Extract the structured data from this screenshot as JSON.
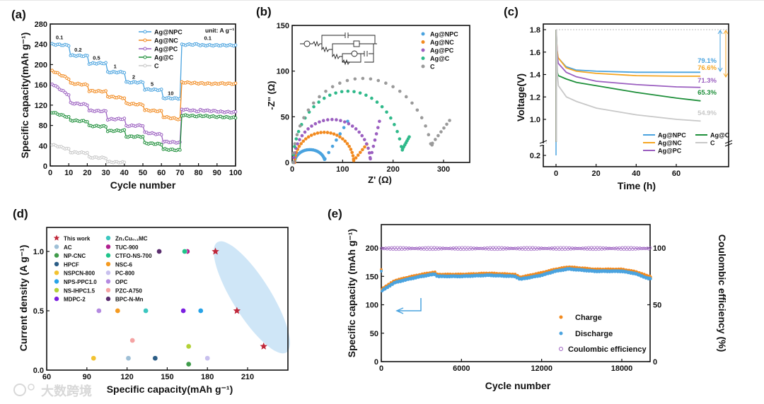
{
  "watermark": "大数跨境",
  "chart_data": [
    {
      "panel": "(a)",
      "type": "line",
      "xlabel": "Cycle number",
      "ylabel": "Specific capacity(mAh g⁻¹)",
      "xlim": [
        0,
        100
      ],
      "ylim": [
        0,
        280
      ],
      "xticks": [
        0,
        10,
        20,
        30,
        40,
        50,
        60,
        70,
        80,
        90,
        100
      ],
      "yticks": [
        0,
        40,
        80,
        120,
        160,
        200,
        240,
        280
      ],
      "unit_label": "unit: A g⁻¹",
      "rate_labels": [
        {
          "text": "0.1",
          "cycle": 5,
          "cap": 250
        },
        {
          "text": "0.2",
          "cycle": 15,
          "cap": 226
        },
        {
          "text": "0.5",
          "cycle": 25,
          "cap": 210
        },
        {
          "text": "1",
          "cycle": 35,
          "cap": 193
        },
        {
          "text": "2",
          "cycle": 45,
          "cap": 172
        },
        {
          "text": "5",
          "cycle": 55,
          "cap": 158
        },
        {
          "text": "10",
          "cycle": 65,
          "cap": 140
        },
        {
          "text": "0.1",
          "cycle": 85,
          "cap": 249
        }
      ],
      "series_note": "each segment = [start, end] capacity over 10 cycles",
      "series": [
        {
          "name": "Ag@NPC",
          "color": "#4aa3df",
          "segments": [
            [
              240,
              238
            ],
            [
              218,
              217
            ],
            [
              202,
              203
            ],
            [
              185,
              185
            ],
            [
              165,
              165
            ],
            [
              151,
              150
            ],
            [
              134,
              133
            ],
            [
              239,
              240
            ],
            [
              238,
              238
            ],
            [
              238,
              238
            ]
          ]
        },
        {
          "name": "Ag@NC",
          "color": "#f28a1f",
          "segments": [
            [
              188,
              172
            ],
            [
              163,
              160
            ],
            [
              148,
              147
            ],
            [
              137,
              134
            ],
            [
              123,
              121
            ],
            [
              110,
              108
            ],
            [
              97,
              92
            ],
            [
              165,
              163
            ],
            [
              163,
              162
            ],
            [
              163,
              162
            ]
          ]
        },
        {
          "name": "Ag@PC",
          "color": "#9b5fc0",
          "segments": [
            [
              162,
              140
            ],
            [
              124,
              121
            ],
            [
              109,
              108
            ],
            [
              92,
              93
            ],
            [
              79,
              80
            ],
            [
              66,
              62
            ],
            [
              48,
              46
            ],
            [
              112,
              108
            ],
            [
              110,
              108
            ],
            [
              107,
              106
            ]
          ]
        },
        {
          "name": "Ag@C",
          "color": "#1e8f3a",
          "segments": [
            [
              106,
              96
            ],
            [
              90,
              88
            ],
            [
              79,
              78
            ],
            [
              69,
              70
            ],
            [
              58,
              58
            ],
            [
              45,
              43
            ],
            [
              33,
              31
            ],
            [
              100,
              98
            ],
            [
              99,
              97
            ],
            [
              97,
              95
            ]
          ]
        },
        {
          "name": "C",
          "color": "#c8c8c8",
          "segments": [
            [
              42,
              33
            ],
            [
              27,
              26
            ],
            [
              17,
              16
            ],
            [
              8,
              7
            ]
          ]
        }
      ]
    },
    {
      "panel": "(b)",
      "type": "scatter",
      "xlabel": "Z' (Ω)",
      "ylabel": "-Z'' (Ω)",
      "xlim": [
        0,
        350
      ],
      "ylim": [
        0,
        150
      ],
      "xticks": [
        0,
        100,
        200,
        300
      ],
      "yticks": [
        0,
        50,
        100,
        150
      ],
      "series_note": "Nyquist arcs: start, arc end (min), arc peak height, min height, tail end point",
      "series": [
        {
          "name": "Ag@NPC",
          "color": "#4aa3df",
          "start": 5,
          "end": 65,
          "peak": 14,
          "min": 4,
          "tail": [
            110,
            45
          ]
        },
        {
          "name": "Ag@NC",
          "color": "#f28a1f",
          "start": 5,
          "end": 122,
          "peak": 33,
          "min": 2,
          "tail": [
            148,
            20
          ]
        },
        {
          "name": "Ag@PC",
          "color": "#9b5fc0",
          "start": 3,
          "end": 155,
          "peak": 47,
          "min": 4,
          "tail": [
            173,
            45
          ]
        },
        {
          "name": "Ag@C",
          "color": "#2fb98a",
          "start": 2,
          "end": 219,
          "peak": 78,
          "min": 15,
          "tail": [
            232,
            28
          ]
        },
        {
          "name": "C",
          "color": "#9a9a9a",
          "start": 2,
          "end": 278,
          "peak": 92,
          "min": 21,
          "tail": [
            312,
            46
          ]
        }
      ]
    },
    {
      "panel": "(c)",
      "type": "line",
      "xlabel": "Time (h)",
      "ylabel": "Voltage(V)",
      "xlim": [
        -5,
        72
      ],
      "ylim": [
        0.1,
        1.85
      ],
      "xticks": [
        0,
        20,
        40,
        60
      ],
      "yticks": [
        0.2,
        1.0,
        1.2,
        1.4,
        1.6,
        1.8
      ],
      "t": [
        0,
        0.5,
        1,
        5,
        10,
        20,
        40,
        60,
        72
      ],
      "series": [
        {
          "name": "Ag@NPC",
          "color": "#4aa3df",
          "v": [
            1.8,
            1.62,
            1.55,
            1.47,
            1.44,
            1.43,
            1.42,
            1.42,
            1.42
          ],
          "retention": "79.1%"
        },
        {
          "name": "Ag@NC",
          "color": "#f5a623",
          "v": [
            1.8,
            1.62,
            1.55,
            1.46,
            1.43,
            1.41,
            1.39,
            1.385,
            1.385
          ],
          "retention": "76.6%"
        },
        {
          "name": "Ag@PC",
          "color": "#9b5fc0",
          "v": [
            1.8,
            1.58,
            1.5,
            1.42,
            1.38,
            1.34,
            1.31,
            1.29,
            1.285
          ],
          "retention": "71.3%"
        },
        {
          "name": "Ag@C",
          "color": "#1e8f3a",
          "v": [
            1.8,
            1.42,
            1.39,
            1.36,
            1.33,
            1.3,
            1.24,
            1.19,
            1.165
          ],
          "retention": "65.3%"
        },
        {
          "name": "C",
          "color": "#c8c8c8",
          "v": [
            1.8,
            1.4,
            1.3,
            1.2,
            1.16,
            1.1,
            1.04,
            1.0,
            0.985
          ],
          "retention": "54.9%"
        }
      ]
    },
    {
      "panel": "(d)",
      "type": "scatter",
      "xlabel": "Specific capacity(mAh g⁻¹)",
      "ylabel": "Current density (A g⁻¹)",
      "xlim": [
        60,
        230
      ],
      "ylim": [
        0,
        1.2
      ],
      "xticks": [
        60,
        90,
        120,
        150,
        180,
        210
      ],
      "yticks": [
        0.0,
        0.5,
        1.0
      ],
      "series": [
        {
          "name": "This work",
          "color": "#c0283a",
          "marker": "star",
          "points": [
            [
              186,
              1.0
            ],
            [
              202,
              0.5
            ],
            [
              222,
              0.2
            ]
          ]
        },
        {
          "name": "AC",
          "color": "#9ebfd6",
          "points": [
            [
              121,
              0.1
            ]
          ]
        },
        {
          "name": "NP-CNC",
          "color": "#3f9b4a",
          "points": [
            [
              166,
              0.05
            ]
          ]
        },
        {
          "name": "HPCF",
          "color": "#2b5d86",
          "points": [
            [
              141,
              0.1
            ]
          ]
        },
        {
          "name": "NSPCN-800",
          "color": "#f2c230",
          "points": [
            [
              95,
              0.1
            ]
          ]
        },
        {
          "name": "NPS-PPC1.0",
          "color": "#27a3e8",
          "points": [
            [
              175,
              0.5
            ]
          ]
        },
        {
          "name": "NS-IHPC1.5",
          "color": "#b3d136",
          "points": [
            [
              166,
              0.2
            ]
          ]
        },
        {
          "name": "MDPC-2",
          "color": "#7b1fe0",
          "points": [
            [
              162,
              0.5
            ]
          ]
        },
        {
          "name": "Zn₁Cu₀.₂MC",
          "color": "#3cc7c0",
          "points": [
            [
              134,
              0.5
            ]
          ]
        },
        {
          "name": "TUC-900",
          "color": "#b0208f",
          "points": [
            [
              165,
              1.0
            ]
          ]
        },
        {
          "name": "CTFO-NS-700",
          "color": "#1fc48a",
          "points": [
            [
              163,
              1.0
            ]
          ]
        },
        {
          "name": "NSC-6",
          "color": "#f59a1f",
          "points": [
            [
              113,
              0.5
            ]
          ]
        },
        {
          "name": "PC-800",
          "color": "#c8c0ee",
          "points": [
            [
              180,
              0.1
            ]
          ]
        },
        {
          "name": "OPC",
          "color": "#b48ae0",
          "points": [
            [
              99,
              0.5
            ]
          ]
        },
        {
          "name": "PZC-A750",
          "color": "#f5a3a3",
          "points": [
            [
              124,
              0.25
            ]
          ]
        },
        {
          "name": "BPC-N-Mn",
          "color": "#5a2d6e",
          "points": [
            [
              144,
              1.0
            ]
          ]
        }
      ]
    },
    {
      "panel": "(e)",
      "type": "scatter",
      "xlabel": "Cycle number",
      "ylabel": "Specific capacity (mAh g⁻¹)",
      "y2label": "Coulombic efficiency (%)",
      "xlim": [
        0,
        20300
      ],
      "ylim": [
        0,
        241
      ],
      "y2lim": [
        0,
        120.5
      ],
      "xticks": [
        0,
        6000,
        12000,
        18000
      ],
      "yticks": [
        0,
        50,
        100,
        150,
        200
      ],
      "y2ticks": [
        0,
        50,
        100
      ],
      "x": [
        0,
        50,
        200,
        1000,
        2000,
        3000,
        4000,
        4200,
        6000,
        8000,
        10000,
        10400,
        12000,
        13000,
        14000,
        16000,
        18000,
        19000,
        20000
      ],
      "series": [
        {
          "name": "Charge",
          "color": "#f28a1f",
          "values": [
            162,
            128,
            130,
            142,
            148,
            153,
            157,
            153,
            153,
            155,
            153,
            148,
            156,
            162,
            166,
            162,
            162,
            158,
            150
          ]
        },
        {
          "name": "Discharge",
          "color": "#4aa3df",
          "values": [
            158,
            125,
            127,
            139,
            145,
            150,
            154,
            150,
            150,
            152,
            150,
            145,
            152,
            159,
            163,
            159,
            159,
            155,
            146
          ]
        },
        {
          "name": "Coulombic efficiency",
          "color": "#9b5fc0",
          "axis": "right",
          "value": 99.5
        }
      ]
    }
  ]
}
